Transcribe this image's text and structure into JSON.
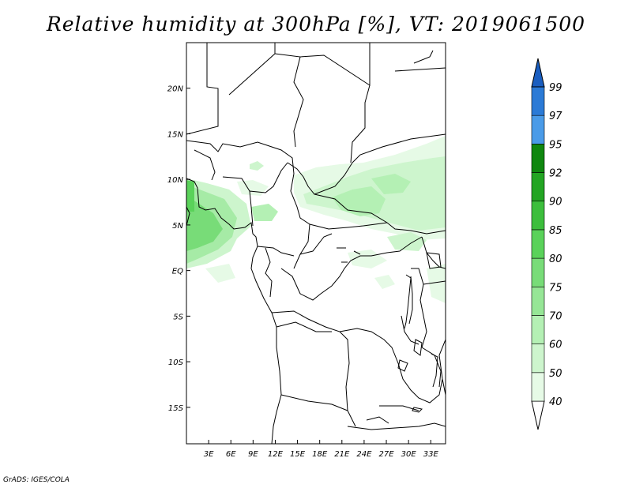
{
  "title": "Relative humidity at 300hPa [%], VT: 2019061500",
  "credit": "GrADS: IGES/COLA",
  "map": {
    "variable": "Relative humidity",
    "level": "300hPa",
    "units": "%",
    "valid_time": "2019061500",
    "lon_range": [
      0,
      35
    ],
    "lat_range": [
      -19,
      25
    ],
    "x_ticks": [
      "3E",
      "6E",
      "9E",
      "12E",
      "15E",
      "18E",
      "21E",
      "24E",
      "27E",
      "30E",
      "33E"
    ],
    "y_ticks": [
      "20N",
      "15N",
      "10N",
      "5N",
      "EQ",
      "5S",
      "10S",
      "15S"
    ]
  },
  "colorbar": {
    "labels": [
      "40",
      "50",
      "60",
      "70",
      "75",
      "80",
      "85",
      "90",
      "92",
      "95",
      "97",
      "99"
    ],
    "colors": [
      "#ffffff",
      "#e6fae6",
      "#cdf5cd",
      "#b4f0b4",
      "#96e696",
      "#78dc78",
      "#5ad25a",
      "#3cbe3c",
      "#23a523",
      "#0f870f",
      "#4a9be8",
      "#2b7ad6",
      "#1a5ec0"
    ]
  }
}
